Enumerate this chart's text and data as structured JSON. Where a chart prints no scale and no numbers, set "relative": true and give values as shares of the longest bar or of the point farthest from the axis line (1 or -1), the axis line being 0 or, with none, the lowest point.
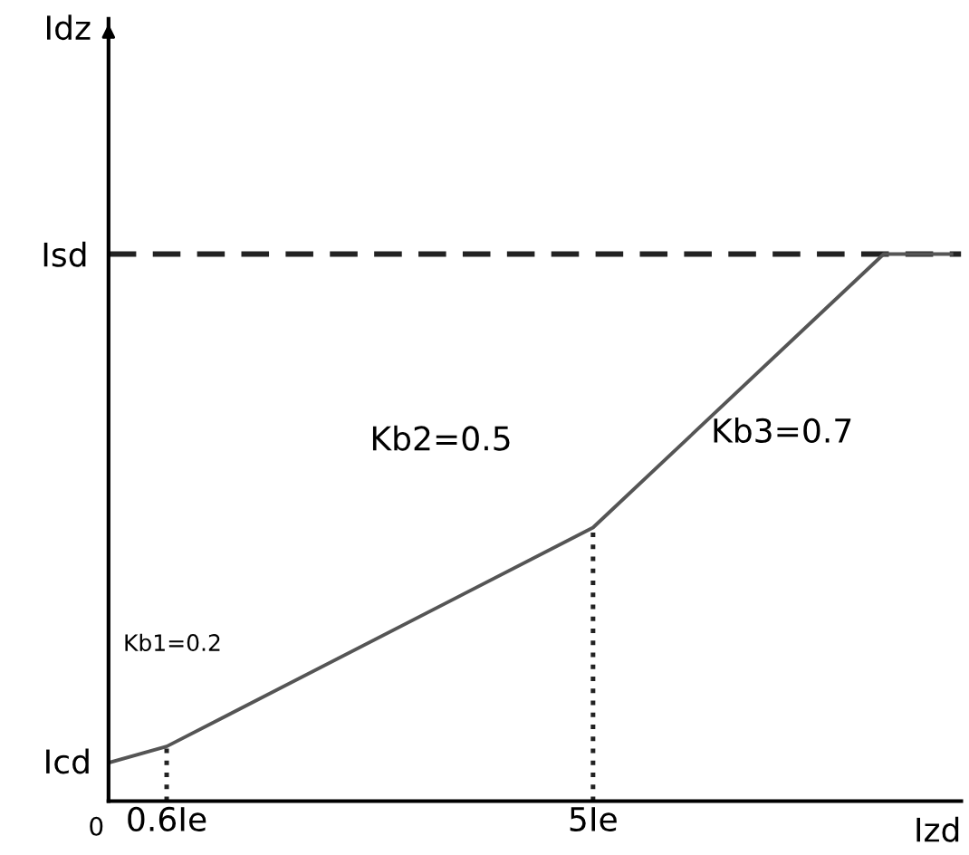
{
  "chart_data": {
    "type": "line",
    "relative": true,
    "xlabel": "Izd",
    "x": [
      0,
      0.6,
      5,
      8,
      8.7
    ],
    "series": [
      {
        "color": "#555555",
        "values": [
          0.07,
          0.1,
          0.5,
          1,
          1
        ]
      }
    ],
    "xlim": [
      0,
      8.8
    ],
    "xticks": [
      {
        "value": 0.6,
        "label": "0.6Ie"
      },
      {
        "value": 5,
        "label": "5Ie"
      }
    ],
    "ref_lines": [
      {
        "axis": "y",
        "value": 1,
        "label": "Isd",
        "line_style": "dashed",
        "color": "#222222"
      },
      {
        "axis": "x",
        "value": 0.6,
        "label": null,
        "line_style": "dotted",
        "color": "#222222"
      },
      {
        "axis": "x",
        "value": 5,
        "label": null,
        "line_style": "dotted",
        "color": "#222222"
      }
    ],
    "annotations": [
      "0",
      "Idz",
      "Icd",
      "Kb1=0.2",
      "Kb2=0.5",
      "Kb3=0.7"
    ],
    "grid": false,
    "legend": false,
    "marker": "none",
    "line_style": "solid"
  }
}
